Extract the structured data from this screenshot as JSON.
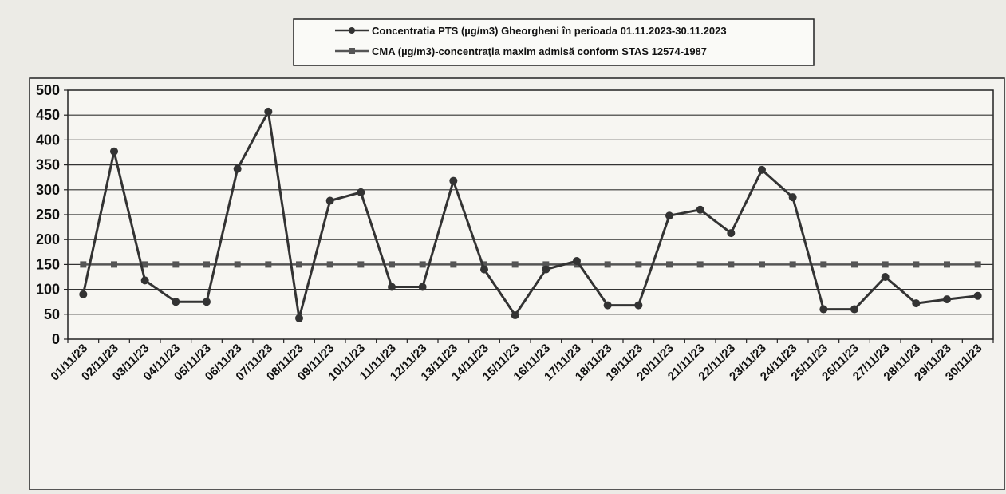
{
  "chart_data": {
    "type": "line",
    "categories": [
      "01/11/23",
      "02/11/23",
      "03/11/23",
      "04/11/23",
      "05/11/23",
      "06/11/23",
      "07/11/23",
      "08/11/23",
      "09/11/23",
      "10/11/23",
      "11/11/23",
      "12/11/23",
      "13/11/23",
      "14/11/23",
      "15/11/23",
      "16/11/23",
      "17/11/23",
      "18/11/23",
      "19/11/23",
      "20/11/23",
      "21/11/23",
      "22/11/23",
      "23/11/23",
      "24/11/23",
      "25/11/23",
      "26/11/23",
      "27/11/23",
      "28/11/23",
      "29/11/23",
      "30/11/23"
    ],
    "series": [
      {
        "name": "Concentratia PTS (µg/m3) Gheorgheni în perioada 01.11.2023-30.11.2023",
        "marker": "circle",
        "color": "#333333",
        "values": [
          90,
          377,
          118,
          75,
          75,
          342,
          457,
          42,
          278,
          295,
          105,
          105,
          318,
          140,
          48,
          140,
          157,
          68,
          68,
          248,
          260,
          213,
          340,
          285,
          60,
          60,
          125,
          72,
          80,
          87
        ]
      },
      {
        "name": "CMA (µg/m3)-concentraţia maxim admisă conform STAS 12574-1987",
        "marker": "square",
        "color": "#555555",
        "values": [
          150,
          150,
          150,
          150,
          150,
          150,
          150,
          150,
          150,
          150,
          150,
          150,
          150,
          150,
          150,
          150,
          150,
          150,
          150,
          150,
          150,
          150,
          150,
          150,
          150,
          150,
          150,
          150,
          150,
          150
        ]
      }
    ],
    "y_ticks": [
      "0",
      "50",
      "100",
      "150",
      "200",
      "250",
      "300",
      "350",
      "400",
      "450",
      "500"
    ],
    "ylim": [
      0,
      500
    ],
    "grid": true,
    "legend_position": "top-center"
  }
}
